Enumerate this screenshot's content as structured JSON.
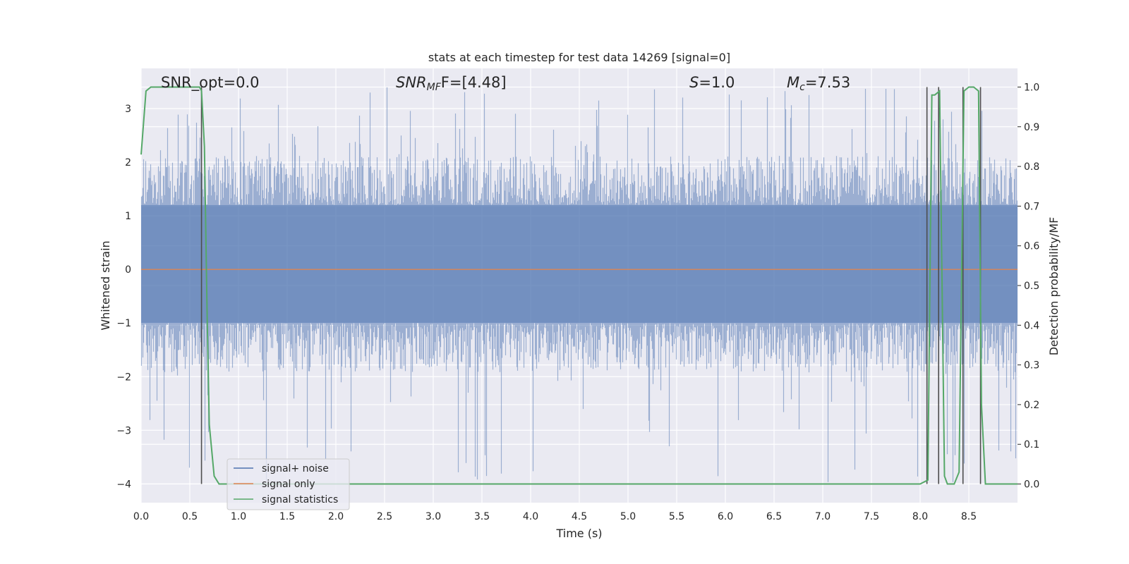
{
  "chart_data": {
    "type": "line",
    "title": "stats at each timestep for test data 14269 [signal=0]",
    "xlabel": "Time (s)",
    "ylabel": "Whitened strain",
    "y2label": "Detection probability/MF",
    "xlim": [
      0,
      9
    ],
    "ylim": [
      -4.35,
      3.75
    ],
    "y2lim": [
      -0.047,
      1.047
    ],
    "x_ticks": [
      0.0,
      0.5,
      1.0,
      1.5,
      2.0,
      2.5,
      3.0,
      3.5,
      4.0,
      4.5,
      5.0,
      5.5,
      6.0,
      6.5,
      7.0,
      7.5,
      8.0,
      8.5
    ],
    "y_ticks": [
      3,
      2,
      1,
      0,
      -1,
      -2,
      -3,
      -4
    ],
    "y2_ticks": [
      1.0,
      0.9,
      0.8,
      0.7,
      0.6,
      0.5,
      0.4,
      0.3,
      0.2,
      0.1,
      0.0
    ],
    "grid": true,
    "legend_position": "lower-left",
    "annotations": {
      "snr_opt": "SNR_opt=0.0",
      "snr_mf_main": "SNR",
      "snr_mf_sub": "MF",
      "snr_mf_value": "F=[4.48]",
      "s_symbol": "S",
      "s_value": "=1.0",
      "mc_symbol": "M",
      "mc_sub": "c",
      "mc_value": "=7.53"
    },
    "series": [
      {
        "name": "signal+ noise",
        "color": "#4c72b0",
        "kind": "noise",
        "core_band": [
          -1.0,
          1.2
        ],
        "typical_extent": [
          -1.8,
          2.0
        ],
        "extreme_min": -4.0,
        "extreme_max": 3.4
      },
      {
        "name": "signal only",
        "color": "#dd8452",
        "x": [
          0,
          9
        ],
        "y": [
          0,
          0
        ]
      },
      {
        "name": "signal statistics",
        "color": "#55a868",
        "axis": "right",
        "x": [
          0.0,
          0.05,
          0.1,
          0.15,
          0.2,
          0.3,
          0.4,
          0.5,
          0.55,
          0.6,
          0.62,
          0.65,
          0.68,
          0.7,
          0.75,
          0.8,
          1.0,
          2.0,
          3.0,
          4.0,
          5.0,
          6.0,
          7.0,
          8.0,
          8.08,
          8.12,
          8.15,
          8.2,
          8.25,
          8.28,
          8.3,
          8.35,
          8.4,
          8.45,
          8.5,
          8.55,
          8.6,
          8.63,
          8.67,
          8.75,
          8.9,
          9.0
        ],
        "y": [
          0.83,
          0.99,
          1.0,
          1.0,
          1.0,
          1.0,
          1.0,
          1.0,
          1.0,
          1.0,
          0.99,
          0.85,
          0.4,
          0.15,
          0.02,
          0.0,
          0.0,
          0.0,
          0.0,
          0.0,
          0.0,
          0.0,
          0.0,
          0.0,
          0.01,
          0.98,
          0.98,
          0.99,
          0.02,
          0.0,
          0.0,
          0.0,
          0.03,
          0.99,
          1.0,
          1.0,
          0.99,
          0.2,
          0.0,
          0.0,
          0.0,
          0.0
        ]
      }
    ],
    "vertical_markers_x": [
      0.62,
      8.07,
      8.19,
      8.44,
      8.62
    ]
  }
}
